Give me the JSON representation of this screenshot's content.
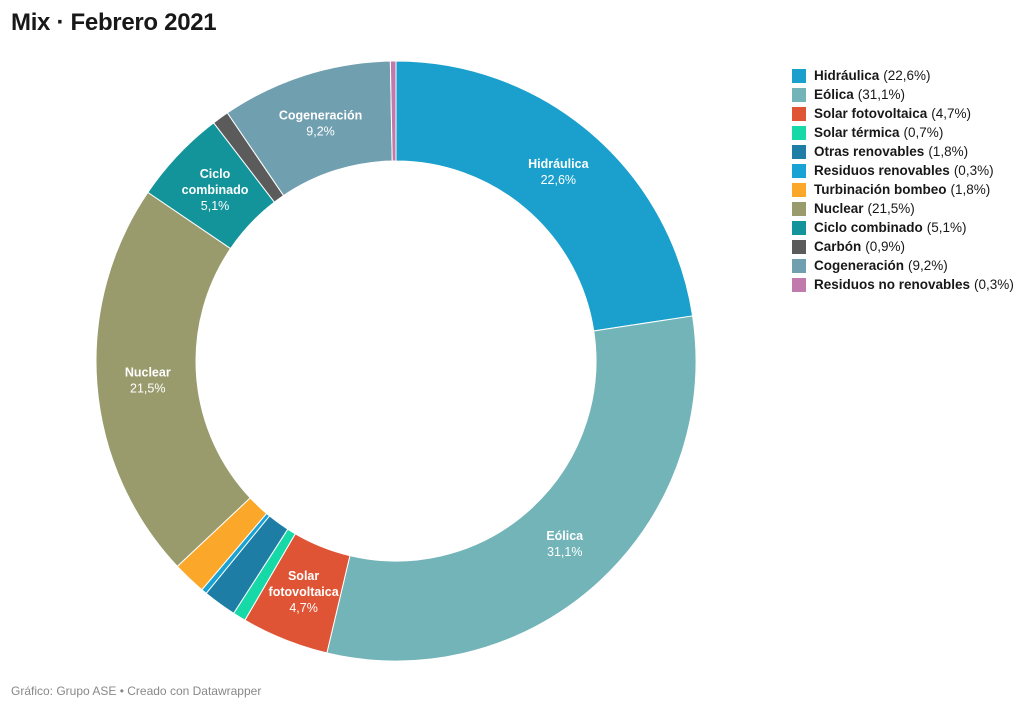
{
  "title": "Mix · Febrero 2021",
  "footer": "Gráfico: Grupo ASE • Creado con Datawrapper",
  "chart_data": {
    "type": "pie",
    "variant": "donut",
    "title": "Mix · Febrero 2021",
    "legend_placement": "right",
    "slices": [
      {
        "name": "Hidráulica",
        "label": "Hidráulica",
        "value": 22.6,
        "display": "22,6%",
        "color": "#1ba0cd",
        "show_label": true,
        "label_color": "#ffffff"
      },
      {
        "name": "Eólica",
        "label": "Eólica",
        "value": 31.1,
        "display": "31,1%",
        "color": "#72b4b8",
        "show_label": true,
        "label_color": "#ffffff"
      },
      {
        "name": "Solar fotovoltaica",
        "label": "Solar\nfotovoltaica",
        "value": 4.7,
        "display": "4,7%",
        "color": "#e05436",
        "show_label": true,
        "label_color": "#ffffff"
      },
      {
        "name": "Solar térmica",
        "value": 0.7,
        "display": "0,7%",
        "color": "#17d9a8",
        "show_label": false
      },
      {
        "name": "Otras renovables",
        "value": 1.8,
        "display": "1,8%",
        "color": "#1e7da5",
        "show_label": false
      },
      {
        "name": "Residuos renovables",
        "value": 0.3,
        "display": "0,3%",
        "color": "#18a3d4",
        "show_label": false
      },
      {
        "name": "Turbinación bombeo",
        "value": 1.8,
        "display": "1,8%",
        "color": "#fba72a",
        "show_label": false
      },
      {
        "name": "Nuclear",
        "label": "Nuclear",
        "value": 21.5,
        "display": "21,5%",
        "color": "#999b6c",
        "show_label": true,
        "label_color": "#ffffff"
      },
      {
        "name": "Ciclo combinado",
        "label": "Ciclo\ncombinado",
        "value": 5.1,
        "display": "5,1%",
        "color": "#13949b",
        "show_label": true,
        "label_color": "#ffffff"
      },
      {
        "name": "Carbón",
        "value": 0.9,
        "display": "0,9%",
        "color": "#5b5b5b",
        "show_label": false
      },
      {
        "name": "Cogeneración",
        "label": "Cogeneración",
        "value": 9.2,
        "display": "9,2%",
        "color": "#709faf",
        "show_label": true,
        "label_color": "#ffffff"
      },
      {
        "name": "Residuos no renovables",
        "value": 0.3,
        "display": "0,3%",
        "color": "#c07aac",
        "show_label": false
      }
    ]
  }
}
